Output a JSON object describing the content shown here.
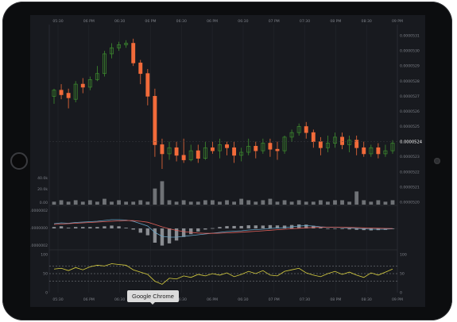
{
  "device": {
    "type": "tablet"
  },
  "tooltip": {
    "label": "Google Chrome"
  },
  "chart": {
    "time_labels": [
      "05:30",
      "06 PM",
      "06:30",
      "06 PM",
      "06:30",
      "06 PM",
      "06:30",
      "07 PM",
      "07:30",
      "08 PM",
      "08:30",
      "09 PM"
    ],
    "price_labels": [
      "0.0000531",
      "0.0000530",
      "0.0000529",
      "0.0000528",
      "0.0000527",
      "0.0000526",
      "0.0000525",
      "0.0000524",
      "0.0000523",
      "0.0000522",
      "0.0000521",
      "0.0000520"
    ],
    "current_price": "0.0000524",
    "volume_labels": [
      "40.0k",
      "20.0k",
      "0.00"
    ],
    "macd_labels": [
      "0.0000002",
      "0.0000000",
      "-0.0000002"
    ],
    "rsi_labels": [
      "100",
      "50",
      "0"
    ],
    "rsi_right_labels": [
      "100",
      "50",
      "0"
    ]
  },
  "colors": {
    "up": "#3e8e2f",
    "down": "#f26b3a",
    "volume": "#6f7276",
    "rsi": "#d8cf3e",
    "macd": "#6aa6c7",
    "signal": "#e0605a",
    "background": "#181a1f"
  },
  "chart_data": {
    "type": "line",
    "candles": [
      [
        5.27e-05,
        5.274e-05,
        5.265e-05,
        5.275e-05
      ],
      [
        5.274e-05,
        5.271e-05,
        5.268e-05,
        5.278e-05
      ],
      [
        5.272e-05,
        5.269e-05,
        5.262e-05,
        5.275e-05
      ],
      [
        5.268e-05,
        5.278e-05,
        5.266e-05,
        5.28e-05
      ],
      [
        5.278e-05,
        5.276e-05,
        5.272e-05,
        5.282e-05
      ],
      [
        5.276e-05,
        5.281e-05,
        5.274e-05,
        5.283e-05
      ],
      [
        5.281e-05,
        5.285e-05,
        5.28e-05,
        5.29e-05
      ],
      [
        5.285e-05,
        5.298e-05,
        5.283e-05,
        5.3e-05
      ],
      [
        5.298e-05,
        5.302e-05,
        5.295e-05,
        5.305e-05
      ],
      [
        5.302e-05,
        5.304e-05,
        5.3e-05,
        5.306e-05
      ],
      [
        5.304e-05,
        5.305e-05,
        5.302e-05,
        5.307e-05
      ],
      [
        5.305e-05,
        5.292e-05,
        5.29e-05,
        5.308e-05
      ],
      [
        5.292e-05,
        5.285e-05,
        5.278e-05,
        5.294e-05
      ],
      [
        5.285e-05,
        5.27e-05,
        5.264e-05,
        5.288e-05
      ],
      [
        5.27e-05,
        5.238e-05,
        5.23e-05,
        5.275e-05
      ],
      [
        5.238e-05,
        5.232e-05,
        5.222e-05,
        5.242e-05
      ],
      [
        5.232e-05,
        5.236e-05,
        5.228e-05,
        5.24e-05
      ],
      [
        5.236e-05,
        5.231e-05,
        5.227e-05,
        5.24e-05
      ],
      [
        5.231e-05,
        5.228e-05,
        5.226e-05,
        5.242e-05
      ],
      [
        5.228e-05,
        5.234e-05,
        5.227e-05,
        5.238e-05
      ],
      [
        5.234e-05,
        5.229e-05,
        5.226e-05,
        5.238e-05
      ],
      [
        5.229e-05,
        5.236e-05,
        5.228e-05,
        5.24e-05
      ],
      [
        5.236e-05,
        5.234e-05,
        5.232e-05,
        5.24e-05
      ],
      [
        5.234e-05,
        5.238e-05,
        5.229e-05,
        5.242e-05
      ],
      [
        5.238e-05,
        5.236e-05,
        5.231e-05,
        5.24e-05
      ],
      [
        5.236e-05,
        5.231e-05,
        5.226e-05,
        5.24e-05
      ],
      [
        5.231e-05,
        5.233e-05,
        5.227e-05,
        5.236e-05
      ],
      [
        5.233e-05,
        5.237e-05,
        5.231e-05,
        5.242e-05
      ],
      [
        5.237e-05,
        5.234e-05,
        5.229e-05,
        5.24e-05
      ],
      [
        5.234e-05,
        5.239e-05,
        5.232e-05,
        5.242e-05
      ],
      [
        5.239e-05,
        5.235e-05,
        5.23e-05,
        5.242e-05
      ],
      [
        5.235e-05,
        5.234e-05,
        5.228e-05,
        5.24e-05
      ],
      [
        5.234e-05,
        5.243e-05,
        5.232e-05,
        5.244e-05
      ],
      [
        5.243e-05,
        5.246e-05,
        5.24e-05,
        5.248e-05
      ],
      [
        5.246e-05,
        5.25e-05,
        5.244e-05,
        5.252e-05
      ],
      [
        5.25e-05,
        5.246e-05,
        5.242e-05,
        5.253e-05
      ],
      [
        5.246e-05,
        5.24e-05,
        5.236e-05,
        5.248e-05
      ],
      [
        5.24e-05,
        5.236e-05,
        5.231e-05,
        5.243e-05
      ],
      [
        5.236e-05,
        5.239e-05,
        5.233e-05,
        5.244e-05
      ],
      [
        5.239e-05,
        5.243e-05,
        5.236e-05,
        5.246e-05
      ],
      [
        5.243e-05,
        5.238e-05,
        5.235e-05,
        5.246e-05
      ],
      [
        5.238e-05,
        5.241e-05,
        5.233e-05,
        5.244e-05
      ],
      [
        5.241e-05,
        5.236e-05,
        5.231e-05,
        5.244e-05
      ],
      [
        5.236e-05,
        5.232e-05,
        5.23e-05,
        5.24e-05
      ],
      [
        5.232e-05,
        5.236e-05,
        5.23e-05,
        5.238e-05
      ],
      [
        5.236e-05,
        5.232e-05,
        5.229e-05,
        5.239e-05
      ],
      [
        5.232e-05,
        5.234e-05,
        5.23e-05,
        5.238e-05
      ],
      [
        5.234e-05,
        5.239e-05,
        5.232e-05,
        5.241e-05
      ]
    ],
    "volume": [
      2,
      3,
      2,
      3,
      2,
      3,
      2,
      4,
      2,
      3,
      2,
      2,
      3,
      2,
      11,
      16,
      3,
      2,
      3,
      2,
      2,
      3,
      3,
      2,
      3,
      2,
      4,
      3,
      2,
      3,
      4,
      2,
      3,
      2,
      3,
      2,
      2,
      3,
      2,
      3,
      3,
      2,
      9,
      3,
      2,
      3,
      2,
      3
    ],
    "rsi": [
      62,
      64,
      58,
      66,
      60,
      68,
      72,
      70,
      76,
      74,
      72,
      60,
      54,
      48,
      30,
      22,
      38,
      36,
      44,
      40,
      48,
      44,
      50,
      46,
      52,
      42,
      48,
      56,
      50,
      58,
      46,
      44,
      56,
      60,
      64,
      52,
      46,
      42,
      50,
      56,
      48,
      54,
      46,
      40,
      52,
      46,
      54,
      62
    ],
    "macd": [
      0.6,
      0.7,
      0.65,
      0.75,
      0.8,
      0.85,
      0.9,
      1.0,
      1.1,
      1.1,
      1.05,
      0.9,
      0.6,
      0.3,
      -0.5,
      -1.0,
      -1.1,
      -1.1,
      -1.0,
      -0.9,
      -0.8,
      -0.7,
      -0.6,
      -0.5,
      -0.4,
      -0.35,
      -0.3,
      -0.2,
      -0.15,
      -0.1,
      0.0,
      0.05,
      0.1,
      0.2,
      0.3,
      0.35,
      0.3,
      0.2,
      0.15,
      0.15,
      0.1,
      0.05,
      0.0,
      -0.05,
      -0.1,
      -0.1,
      -0.1,
      -0.05
    ],
    "signal": [
      0.5,
      0.55,
      0.6,
      0.65,
      0.7,
      0.75,
      0.8,
      0.85,
      0.9,
      0.95,
      1.0,
      0.98,
      0.9,
      0.78,
      0.5,
      0.2,
      -0.05,
      -0.25,
      -0.4,
      -0.5,
      -0.58,
      -0.62,
      -0.62,
      -0.6,
      -0.56,
      -0.52,
      -0.47,
      -0.42,
      -0.36,
      -0.3,
      -0.23,
      -0.16,
      -0.1,
      -0.04,
      0.02,
      0.08,
      0.12,
      0.14,
      0.15,
      0.15,
      0.14,
      0.12,
      0.1,
      0.07,
      0.04,
      0.02,
      0.0,
      -0.01
    ]
  }
}
